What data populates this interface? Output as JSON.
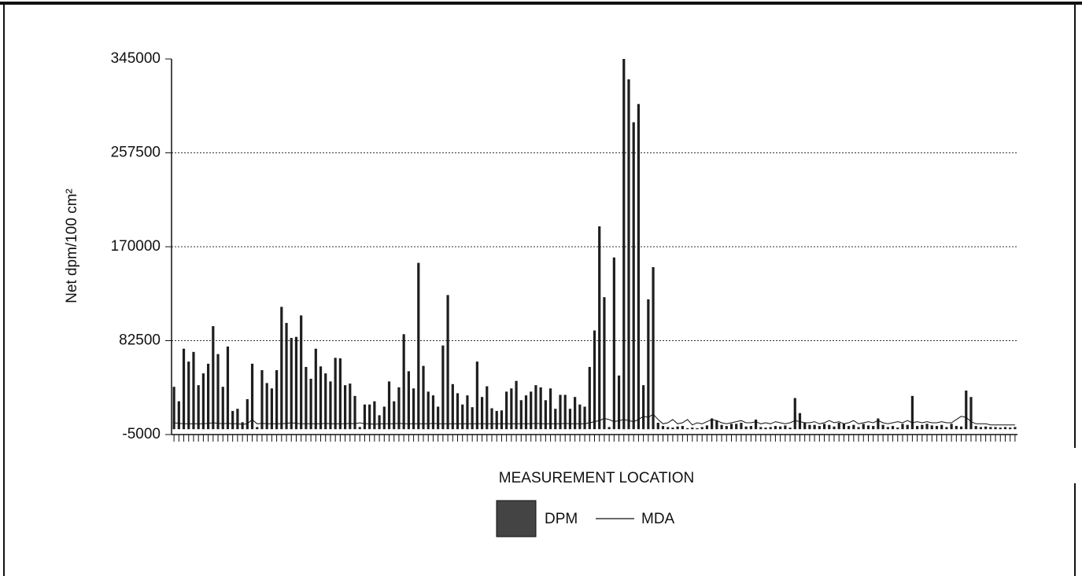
{
  "chart_data": {
    "type": "bar",
    "y_label": "Net dpm/100 cm²",
    "x_label": "MEASUREMENT LOCATION",
    "categories": [
      null,
      null,
      null,
      null,
      null,
      null,
      null,
      null,
      null,
      null,
      null,
      null,
      null,
      null,
      null,
      null,
      null,
      null,
      null,
      null,
      null,
      null,
      null,
      null,
      null,
      null,
      null,
      null,
      null,
      null,
      null,
      null,
      null,
      null,
      null,
      null,
      null,
      null,
      null,
      null,
      null,
      null,
      null,
      null,
      null,
      null,
      null,
      null,
      null,
      null,
      null,
      null,
      null,
      null,
      null,
      null,
      null,
      null,
      null,
      null,
      null,
      null,
      null,
      null,
      null,
      null,
      null,
      null,
      null,
      null,
      null,
      null,
      null,
      null,
      null,
      null,
      null,
      null,
      null,
      null,
      null,
      null,
      null,
      null,
      null,
      null,
      null,
      null,
      null,
      null,
      null,
      null,
      null,
      null,
      null,
      null,
      null,
      null,
      null,
      null,
      null,
      null,
      null,
      null,
      null,
      null,
      null,
      null,
      null,
      null,
      null,
      null,
      null,
      null,
      null,
      null,
      null,
      null,
      null,
      null,
      null,
      null,
      null,
      null,
      null,
      null,
      null,
      null,
      null,
      null,
      null,
      null,
      null,
      null,
      null,
      null,
      null,
      null,
      null,
      null,
      null,
      null,
      null,
      null,
      null,
      null,
      null,
      null,
      null,
      null,
      null,
      null,
      null,
      null,
      null,
      null,
      null,
      null,
      null,
      null,
      null,
      null,
      null,
      null,
      null,
      null,
      null,
      null,
      null,
      null,
      null,
      null,
      null
    ],
    "series": [
      {
        "name": "DPM",
        "color": "#1e1e1e",
        "values": [
          39500,
          26000,
          75000,
          63000,
          72000,
          41000,
          52000,
          61000,
          96000,
          70000,
          39500,
          77000,
          17000,
          19000,
          6500,
          28000,
          61000,
          2000,
          55000,
          43000,
          38000,
          55000,
          114000,
          99000,
          85000,
          86000,
          106000,
          58000,
          47000,
          75000,
          58500,
          52000,
          44500,
          66500,
          66000,
          41000,
          42500,
          31000,
          2000,
          23000,
          23000,
          26000,
          13000,
          21000,
          44500,
          26000,
          39000,
          88500,
          54000,
          38000,
          155000,
          59000,
          35000,
          31500,
          21000,
          78000,
          125000,
          42000,
          33500,
          23000,
          31500,
          20500,
          63000,
          30000,
          40000,
          19500,
          17000,
          17500,
          35000,
          38000,
          45000,
          27000,
          31500,
          35000,
          41000,
          39000,
          27000,
          38000,
          19000,
          32000,
          32000,
          19000,
          30000,
          23000,
          21000,
          58000,
          92000,
          189000,
          123000,
          2000,
          160000,
          50000,
          345000,
          326000,
          286000,
          303000,
          41000,
          121000,
          151000,
          6000,
          3000,
          2000,
          1500,
          2500,
          3000,
          1000,
          1500,
          1000,
          2000,
          3500,
          10000,
          8000,
          4000,
          3000,
          5000,
          5000,
          6000,
          2500,
          3000,
          9000,
          2000,
          1500,
          2000,
          3000,
          2500,
          3500,
          1500,
          29000,
          15000,
          6000,
          4000,
          4000,
          3000,
          5000,
          4000,
          2500,
          6000,
          5000,
          3000,
          4000,
          2000,
          5000,
          3500,
          3000,
          10000,
          4000,
          2000,
          3000,
          1500,
          5000,
          4000,
          31000,
          3000,
          4000,
          5000,
          3500,
          3000,
          4000,
          2000,
          5000,
          3000,
          2500,
          36000,
          30000,
          3000,
          2000,
          2500,
          2000,
          2000,
          1500,
          2000,
          1500,
          2000
        ]
      },
      {
        "name": "MDA",
        "color": "#111111",
        "line": true,
        "values": [
          6000,
          5500,
          5000,
          5000,
          5000,
          5000,
          5000,
          5500,
          6000,
          5500,
          5000,
          5500,
          5000,
          5000,
          4500,
          5000,
          9000,
          5000,
          5500,
          5000,
          5000,
          5000,
          5000,
          5500,
          6000,
          5500,
          5000,
          5000,
          5000,
          5000,
          5000,
          5500,
          5000,
          5000,
          5000,
          5000,
          5500,
          5000,
          6000,
          5000,
          5000,
          4500,
          5000,
          5000,
          5000,
          5000,
          5500,
          5000,
          5000,
          5000,
          5000,
          5000,
          5000,
          5500,
          5000,
          5000,
          5000,
          5000,
          5000,
          5000,
          5000,
          5000,
          5000,
          5000,
          5000,
          5000,
          5000,
          5000,
          5000,
          5000,
          5000,
          5000,
          5000,
          5000,
          5500,
          5000,
          5000,
          5000,
          5000,
          5000,
          5500,
          5000,
          5000,
          5000,
          5000,
          6000,
          7000,
          8000,
          10000,
          9000,
          7000,
          8000,
          9000,
          8000,
          7000,
          9000,
          12000,
          11000,
          14000,
          9000,
          5000,
          6000,
          9000,
          5000,
          6000,
          9000,
          4000,
          6000,
          5000,
          7000,
          9000,
          8000,
          6000,
          5000,
          6000,
          7000,
          8000,
          6000,
          6000,
          7000,
          5000,
          6000,
          5000,
          7000,
          6000,
          5000,
          6000,
          8000,
          7000,
          6000,
          6000,
          7000,
          5000,
          6000,
          8000,
          6000,
          7000,
          5000,
          6000,
          8000,
          5000,
          6000,
          7000,
          6000,
          8000,
          6000,
          5000,
          6000,
          7000,
          6000,
          8000,
          6000,
          7000,
          6000,
          7000,
          6000,
          6000,
          7000,
          6000,
          6000,
          9000,
          12000,
          11000,
          7000,
          5000,
          5000,
          5000,
          4000,
          4000,
          4000,
          4000,
          4000,
          4000
        ]
      }
    ],
    "ylim": [
      -5000,
      345000
    ],
    "yticks": [
      -5000,
      82500,
      170000,
      257500,
      345000
    ],
    "grid": true
  }
}
